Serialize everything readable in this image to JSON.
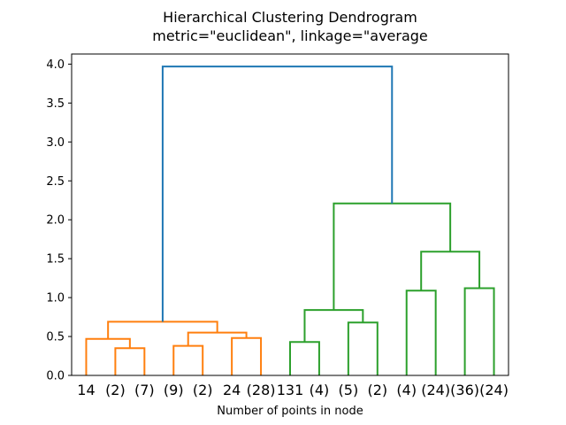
{
  "title": {
    "line1": "Hierarchical Clustering Dendrogram",
    "line2": "metric=\"euclidean\", linkage=\"average"
  },
  "chart_data": {
    "type": "dendrogram",
    "title": "Hierarchical Clustering Dendrogram",
    "subtitle": "metric=\"euclidean\", linkage=\"average",
    "xlabel": "Number of points in node",
    "ylabel": "",
    "xlim": [
      0,
      150
    ],
    "ylim": [
      0,
      4.13
    ],
    "grid": false,
    "colors": {
      "blue": "#1f77b4",
      "orange": "#ff7f0e",
      "green": "#2ca02c"
    },
    "yticks": [
      {
        "value": 0.0,
        "label": "0.0"
      },
      {
        "value": 0.5,
        "label": "0.5"
      },
      {
        "value": 1.0,
        "label": "1.0"
      },
      {
        "value": 1.5,
        "label": "1.5"
      },
      {
        "value": 2.0,
        "label": "2.0"
      },
      {
        "value": 2.5,
        "label": "2.5"
      },
      {
        "value": 3.0,
        "label": "3.0"
      },
      {
        "value": 3.5,
        "label": "3.5"
      },
      {
        "value": 4.0,
        "label": "4.0"
      }
    ],
    "leaves": [
      {
        "label": "14",
        "x": 5
      },
      {
        "label": "(2)",
        "x": 15
      },
      {
        "label": "(7)",
        "x": 25
      },
      {
        "label": "(9)",
        "x": 35
      },
      {
        "label": "(2)",
        "x": 45
      },
      {
        "label": "24",
        "x": 55
      },
      {
        "label": "(28)",
        "x": 65
      },
      {
        "label": "131",
        "x": 75
      },
      {
        "label": "(4)",
        "x": 85
      },
      {
        "label": "(5)",
        "x": 95
      },
      {
        "label": "(2)",
        "x": 105
      },
      {
        "label": "(4)",
        "x": 115
      },
      {
        "label": "(24)",
        "x": 125
      },
      {
        "label": "(36)",
        "x": 135
      },
      {
        "label": "(24)",
        "x": 145
      }
    ],
    "links": [
      {
        "x1": 15,
        "y1": 0,
        "x2": 25,
        "y2": 0,
        "h": 0.35,
        "color": "#ff7f0e"
      },
      {
        "x1": 5,
        "y1": 0,
        "x2": 20,
        "y2": 0.35,
        "h": 0.47,
        "color": "#ff7f0e"
      },
      {
        "x1": 35,
        "y1": 0,
        "x2": 45,
        "y2": 0,
        "h": 0.38,
        "color": "#ff7f0e"
      },
      {
        "x1": 55,
        "y1": 0,
        "x2": 65,
        "y2": 0,
        "h": 0.48,
        "color": "#ff7f0e"
      },
      {
        "x1": 40,
        "y1": 0.38,
        "x2": 60,
        "y2": 0.48,
        "h": 0.55,
        "color": "#ff7f0e"
      },
      {
        "x1": 12.5,
        "y1": 0.47,
        "x2": 50,
        "y2": 0.55,
        "h": 0.69,
        "color": "#ff7f0e"
      },
      {
        "x1": 75,
        "y1": 0,
        "x2": 85,
        "y2": 0,
        "h": 0.43,
        "color": "#2ca02c"
      },
      {
        "x1": 95,
        "y1": 0,
        "x2": 105,
        "y2": 0,
        "h": 0.68,
        "color": "#2ca02c"
      },
      {
        "x1": 80,
        "y1": 0.43,
        "x2": 100,
        "y2": 0.68,
        "h": 0.84,
        "color": "#2ca02c"
      },
      {
        "x1": 115,
        "y1": 0,
        "x2": 125,
        "y2": 0,
        "h": 1.09,
        "color": "#2ca02c"
      },
      {
        "x1": 135,
        "y1": 0,
        "x2": 145,
        "y2": 0,
        "h": 1.12,
        "color": "#2ca02c"
      },
      {
        "x1": 120,
        "y1": 1.09,
        "x2": 140,
        "y2": 1.12,
        "h": 1.59,
        "color": "#2ca02c"
      },
      {
        "x1": 90,
        "y1": 0.84,
        "x2": 130,
        "y2": 1.59,
        "h": 2.21,
        "color": "#2ca02c"
      },
      {
        "x1": 31.25,
        "y1": 0.69,
        "x2": 110,
        "y2": 2.21,
        "h": 3.97,
        "color": "#1f77b4"
      }
    ]
  }
}
